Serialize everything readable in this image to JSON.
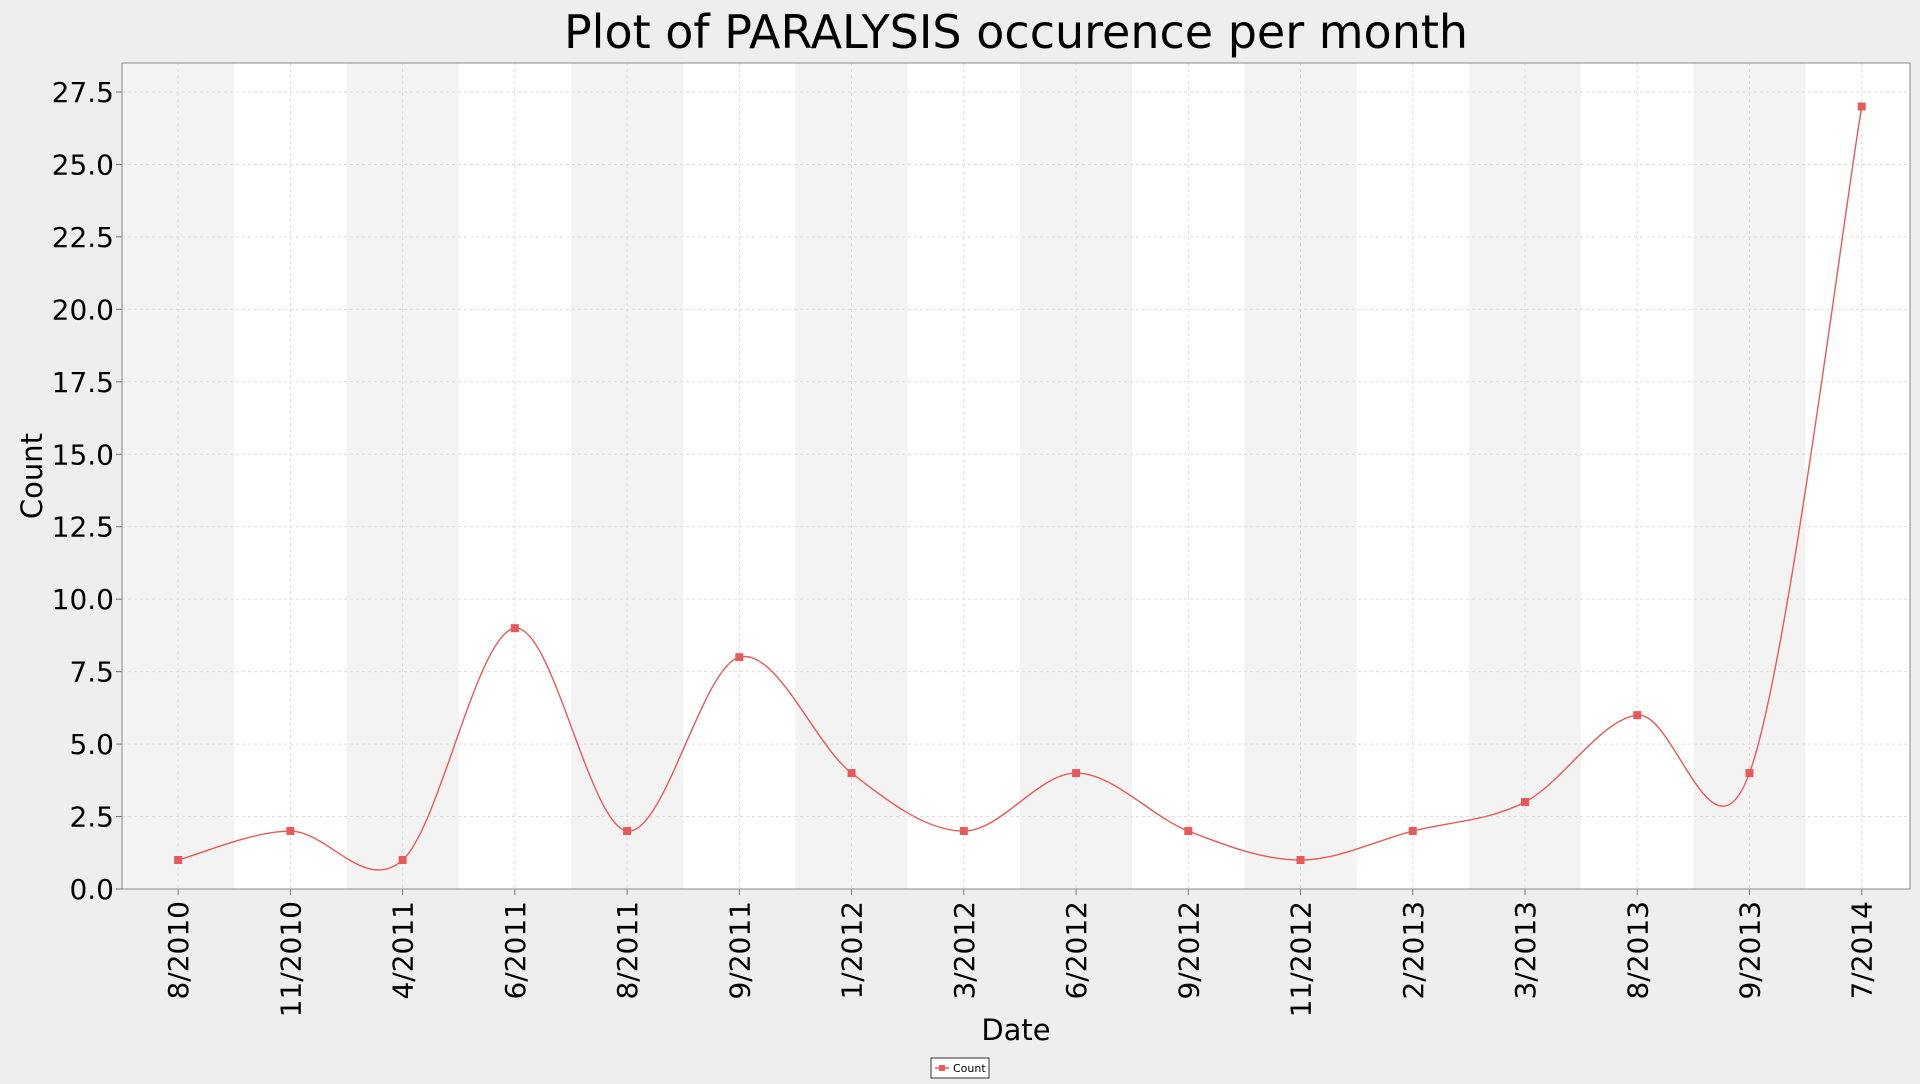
{
  "chart_data": {
    "type": "line",
    "title": "Plot of PARALYSIS occurence per month",
    "xlabel": "Date",
    "ylabel": "Count",
    "categories": [
      "8/2010",
      "11/2010",
      "4/2011",
      "6/2011",
      "8/2011",
      "9/2011",
      "1/2012",
      "3/2012",
      "6/2012",
      "9/2012",
      "11/2012",
      "2/2013",
      "3/2013",
      "8/2013",
      "9/2013",
      "7/2014"
    ],
    "series": [
      {
        "name": "Count",
        "values": [
          1,
          2,
          1,
          9,
          2,
          8,
          4,
          2,
          4,
          2,
          1,
          2,
          3,
          6,
          4,
          27
        ]
      }
    ],
    "ylim": [
      0,
      28.5
    ],
    "yticks": [
      "0.0",
      "2.5",
      "5.0",
      "7.5",
      "10.0",
      "12.5",
      "15.0",
      "17.5",
      "20.0",
      "22.5",
      "25.0",
      "27.5"
    ],
    "grid": true,
    "legend_position": "bottom-center",
    "line_color": "#e8595a",
    "alternating_band_color": "#f3f3f3"
  }
}
